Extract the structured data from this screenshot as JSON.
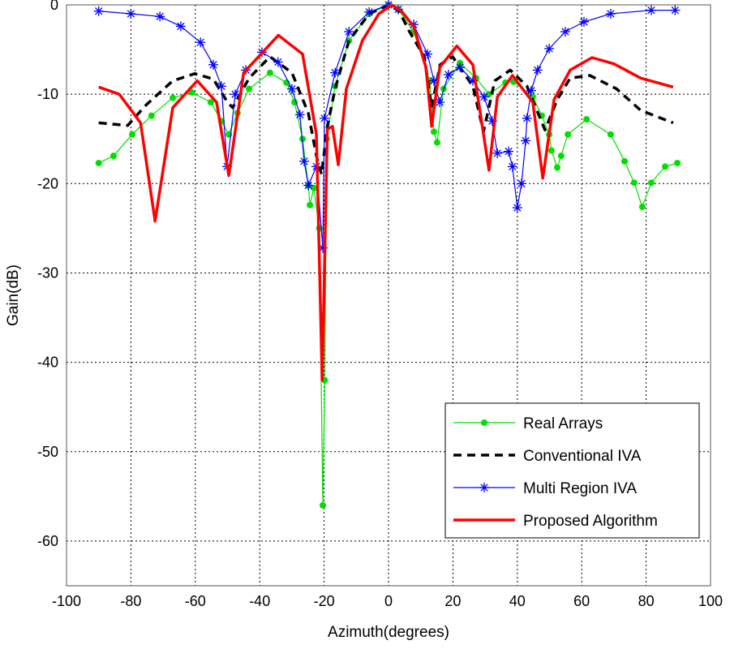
{
  "chart_data": {
    "type": "line",
    "title": "",
    "xlabel": "Azimuth(degrees)",
    "ylabel": "Gain(dB)",
    "xlim": [
      -100,
      100
    ],
    "ylim": [
      -65,
      0
    ],
    "xticks": [
      -100,
      -80,
      -60,
      -40,
      -20,
      0,
      20,
      40,
      60,
      80,
      100
    ],
    "yticks": [
      0,
      -10,
      -20,
      -30,
      -40,
      -50,
      -60
    ],
    "grid": true,
    "legend_position": "bottom-right",
    "series": [
      {
        "name": "Real Arrays",
        "color": "#00e000",
        "style": "solid",
        "marker": "dot",
        "x": [
          -90,
          -85.4,
          -79.6,
          -73.6,
          -67,
          -61,
          -55.2,
          -51.9,
          -49.6,
          -46.9,
          -43.3,
          -36.8,
          -31.7,
          -29.2,
          -26.7,
          -24.9,
          -24.4,
          -23.2,
          -21.5,
          -20.4,
          -19.8,
          -19.2,
          -16.6,
          -12.3,
          -6,
          0,
          3,
          7.8,
          12.8,
          14.1,
          15.1,
          17.1,
          22.2,
          27.2,
          31.2,
          36.3,
          38.8,
          44.8,
          47.6,
          49.9,
          50.6,
          52.4,
          53.6,
          55.7,
          61.5,
          69,
          73.3,
          76.3,
          78.8,
          81.6,
          85.9,
          89.7
        ],
        "y": [
          -17.7,
          -16.9,
          -14.5,
          -12.4,
          -10.4,
          -9.8,
          -10.9,
          -13,
          -14.5,
          -12.1,
          -9.4,
          -7.6,
          -8.7,
          -10.9,
          -15,
          -20.2,
          -22.4,
          -20.5,
          -25,
          -56,
          -42,
          -15,
          -9.1,
          -4,
          -1,
          0,
          -0.5,
          -3,
          -8.5,
          -14.2,
          -15.4,
          -9.4,
          -6.5,
          -8.2,
          -10,
          -8.7,
          -8.6,
          -10.3,
          -12.4,
          -14.5,
          -16.3,
          -18.2,
          -16.9,
          -14.5,
          -12.8,
          -14.5,
          -17.5,
          -19.9,
          -22.6,
          -19.9,
          -18.1,
          -17.7
        ]
      },
      {
        "name": "Conventional IVA",
        "color": "#000000",
        "style": "dashed",
        "marker": "none",
        "x": [
          -90,
          -81,
          -75.3,
          -67,
          -60.2,
          -54.4,
          -50,
          -48.4,
          -43.3,
          -36.8,
          -30,
          -24.9,
          -22.4,
          -20.8,
          -19,
          -16.6,
          -12.3,
          -6,
          0,
          3,
          6.5,
          11.1,
          13.4,
          16,
          19.9,
          26.2,
          29.5,
          33,
          37.8,
          43,
          48.6,
          52.4,
          56.4,
          62.5,
          70.8,
          78.3,
          88.4
        ],
        "y": [
          -13.2,
          -13.5,
          -11.2,
          -8.5,
          -7.7,
          -8.3,
          -10.9,
          -11.5,
          -8.2,
          -5.8,
          -7.6,
          -12.1,
          -16.9,
          -19,
          -13.6,
          -9.4,
          -4,
          -1,
          0,
          -0.5,
          -3,
          -5.8,
          -11.5,
          -6.7,
          -5.8,
          -9.1,
          -14.2,
          -8.5,
          -7.3,
          -9.1,
          -14,
          -10.6,
          -8.2,
          -7.9,
          -9.4,
          -11.8,
          -13.2
        ]
      },
      {
        "name": "Multi Region IVA",
        "color": "#0000ff",
        "style": "solid",
        "marker": "star",
        "x": [
          -90,
          -80,
          -71,
          -64.5,
          -58.4,
          -54.4,
          -51.9,
          -50.1,
          -47.6,
          -44.3,
          -39.3,
          -34.3,
          -30,
          -27.5,
          -26.2,
          -24.9,
          -22.4,
          -20.4,
          -19.9,
          -16.6,
          -12.3,
          -6,
          0,
          3,
          7.8,
          12.1,
          14.1,
          15.9,
          18.6,
          22.2,
          26.2,
          29.7,
          32.2,
          33.8,
          37.3,
          38.5,
          40,
          41.3,
          42.6,
          43,
          44.3,
          46.3,
          49.9,
          54.9,
          60.7,
          69,
          81.6,
          89
        ],
        "y": [
          -0.7,
          -1,
          -1.3,
          -2.4,
          -4.2,
          -6.7,
          -9.1,
          -18.1,
          -10,
          -7.3,
          -5.3,
          -6.4,
          -9.4,
          -12.3,
          -17.5,
          -20.2,
          -18.1,
          -27.2,
          -12.7,
          -7.6,
          -3,
          -0.8,
          0,
          -0.5,
          -2.2,
          -5.5,
          -8.5,
          -10.9,
          -7.8,
          -7,
          -8.5,
          -10.3,
          -13,
          -16.6,
          -16.4,
          -18.1,
          -22.7,
          -20,
          -15.2,
          -12.7,
          -9.6,
          -7.3,
          -4.9,
          -3,
          -1.9,
          -1,
          -0.6,
          -0.6
        ]
      },
      {
        "name": "Proposed Algorithm",
        "color": "#ff0000",
        "style": "solid",
        "marker": "none",
        "x": [
          -90,
          -83.6,
          -77,
          -72.5,
          -67,
          -59.4,
          -53.4,
          -49.6,
          -45,
          -34.2,
          -26.7,
          -22.4,
          -20.6,
          -19,
          -17.4,
          -15.6,
          -13.1,
          -8.1,
          -3,
          1,
          4,
          7.8,
          11.6,
          13.4,
          15.9,
          21.2,
          26.2,
          31.2,
          33.8,
          38.5,
          44.8,
          47.9,
          51.4,
          56.4,
          63.2,
          70,
          78.3,
          88.4
        ],
        "y": [
          -9.2,
          -10,
          -13.2,
          -24.2,
          -11.5,
          -8.5,
          -10.9,
          -19.1,
          -7.6,
          -3.4,
          -5.5,
          -14.5,
          -42,
          -13.9,
          -13.6,
          -17.9,
          -9.4,
          -4,
          -1,
          0,
          -0.7,
          -2.4,
          -7,
          -13.6,
          -7,
          -4.6,
          -6.7,
          -18.5,
          -10.3,
          -7.9,
          -10.9,
          -19.4,
          -10.6,
          -7.3,
          -5.9,
          -6.6,
          -8.2,
          -9.2
        ]
      }
    ]
  }
}
